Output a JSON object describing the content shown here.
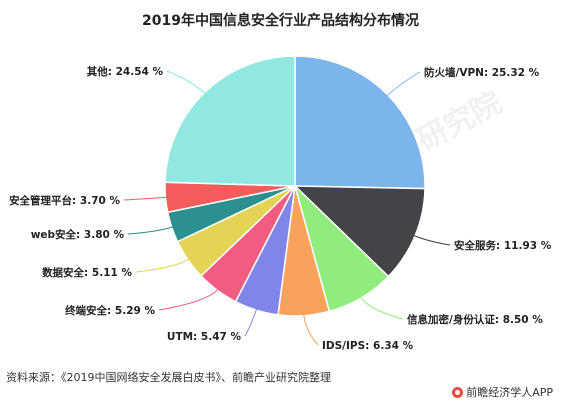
{
  "chart_data": {
    "type": "pie",
    "title": "2019年中国信息安全行业产品结构分布情况",
    "slices": [
      {
        "label": "防火墙/VPN: 25.32 %",
        "value": 25.32,
        "color": "#7cb5ec"
      },
      {
        "label": "安全服务: 11.93 %",
        "value": 11.93,
        "color": "#434348"
      },
      {
        "label": "信息加密/身份认证: 8.50 %",
        "value": 8.5,
        "color": "#90ed7d"
      },
      {
        "label": "IDS/IPS: 6.34 %",
        "value": 6.34,
        "color": "#f7a35c"
      },
      {
        "label": "UTM: 5.47 %",
        "value": 5.47,
        "color": "#8085e9"
      },
      {
        "label": "终端安全: 5.29 %",
        "value": 5.29,
        "color": "#f15c80"
      },
      {
        "label": "数据安全: 5.11 %",
        "value": 5.11,
        "color": "#e4d354"
      },
      {
        "label": "web安全: 3.80 %",
        "value": 3.8,
        "color": "#2b908f"
      },
      {
        "label": "安全管理平台: 3.70 %",
        "value": 3.7,
        "color": "#f45b5b"
      },
      {
        "label": "其他: 24.54 %",
        "value": 24.54,
        "color": "#91e8e1"
      }
    ]
  },
  "source": "资料来源：《2019中国网络安全发展白皮书》、前瞻产业研究院整理",
  "brand": "前瞻经济学人APP",
  "watermark": "前瞻产业研究院"
}
